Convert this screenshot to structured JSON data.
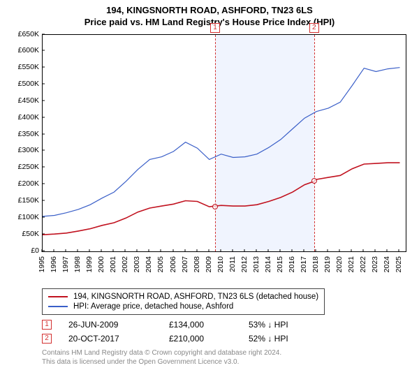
{
  "title": "194, KINGSNORTH ROAD, ASHFORD, TN23 6LS",
  "subtitle": "Price paid vs. HM Land Registry's House Price Index (HPI)",
  "chart": {
    "type": "line",
    "ylim": [
      0,
      650000
    ],
    "ytick_step": 50000,
    "ytick_labels": [
      "£0",
      "£50K",
      "£100K",
      "£150K",
      "£200K",
      "£250K",
      "£300K",
      "£350K",
      "£400K",
      "£450K",
      "£500K",
      "£550K",
      "£600K",
      "£650K"
    ],
    "xlim": [
      1995,
      2025.5
    ],
    "xticks": [
      1995,
      1996,
      1997,
      1998,
      1999,
      2000,
      2001,
      2002,
      2003,
      2004,
      2005,
      2006,
      2007,
      2008,
      2009,
      2010,
      2011,
      2012,
      2013,
      2014,
      2015,
      2016,
      2017,
      2018,
      2019,
      2020,
      2021,
      2022,
      2023,
      2024,
      2025
    ],
    "background_color": "#ffffff",
    "shade_color": "#f0f4fe",
    "shade_range": [
      2009.49,
      2017.8
    ],
    "series": [
      {
        "id": "property",
        "label": "194, KINGSNORTH ROAD, ASHFORD, TN23 6LS (detached house)",
        "color": "#c1121f",
        "width": 1.6,
        "data": [
          [
            1995,
            50000
          ],
          [
            1996,
            52000
          ],
          [
            1997,
            55000
          ],
          [
            1998,
            61000
          ],
          [
            1999,
            68000
          ],
          [
            2000,
            78000
          ],
          [
            2001,
            86000
          ],
          [
            2002,
            100000
          ],
          [
            2003,
            118000
          ],
          [
            2004,
            130000
          ],
          [
            2005,
            136000
          ],
          [
            2006,
            142000
          ],
          [
            2007,
            152000
          ],
          [
            2008,
            150000
          ],
          [
            2009,
            134000
          ],
          [
            2010,
            138000
          ],
          [
            2011,
            136000
          ],
          [
            2012,
            136000
          ],
          [
            2013,
            140000
          ],
          [
            2014,
            150000
          ],
          [
            2015,
            162000
          ],
          [
            2016,
            178000
          ],
          [
            2017,
            200000
          ],
          [
            2017.8,
            210000
          ],
          [
            2018,
            216000
          ],
          [
            2019,
            222000
          ],
          [
            2020,
            228000
          ],
          [
            2021,
            248000
          ],
          [
            2022,
            262000
          ],
          [
            2023,
            264000
          ],
          [
            2024,
            266000
          ],
          [
            2025,
            266000
          ]
        ]
      },
      {
        "id": "hpi",
        "label": "HPI: Average price, detached house, Ashford",
        "color": "#3a5fc8",
        "width": 1.2,
        "data": [
          [
            1995,
            105000
          ],
          [
            1996,
            108000
          ],
          [
            1997,
            116000
          ],
          [
            1998,
            126000
          ],
          [
            1999,
            140000
          ],
          [
            2000,
            160000
          ],
          [
            2001,
            178000
          ],
          [
            2002,
            210000
          ],
          [
            2003,
            246000
          ],
          [
            2004,
            276000
          ],
          [
            2005,
            284000
          ],
          [
            2006,
            300000
          ],
          [
            2007,
            328000
          ],
          [
            2008,
            310000
          ],
          [
            2009,
            276000
          ],
          [
            2010,
            292000
          ],
          [
            2011,
            282000
          ],
          [
            2012,
            284000
          ],
          [
            2013,
            292000
          ],
          [
            2014,
            312000
          ],
          [
            2015,
            336000
          ],
          [
            2016,
            368000
          ],
          [
            2017,
            400000
          ],
          [
            2018,
            420000
          ],
          [
            2019,
            430000
          ],
          [
            2020,
            448000
          ],
          [
            2021,
            498000
          ],
          [
            2022,
            550000
          ],
          [
            2023,
            540000
          ],
          [
            2024,
            548000
          ],
          [
            2025,
            552000
          ]
        ]
      }
    ],
    "sale_markers": [
      {
        "idx": "1",
        "x": 2009.49,
        "y": 134000,
        "vline_color": "#d32f2f"
      },
      {
        "idx": "2",
        "x": 2017.8,
        "y": 210000,
        "vline_color": "#d32f2f"
      }
    ]
  },
  "legend": {
    "items": [
      {
        "label": "194, KINGSNORTH ROAD, ASHFORD, TN23 6LS (detached house)",
        "color": "#c1121f"
      },
      {
        "label": "HPI: Average price, detached house, Ashford",
        "color": "#3a5fc8"
      }
    ]
  },
  "sales": [
    {
      "idx": "1",
      "date": "26-JUN-2009",
      "price": "£134,000",
      "pct": "53%  ↓ HPI"
    },
    {
      "idx": "2",
      "date": "20-OCT-2017",
      "price": "£210,000",
      "pct": "52%  ↓ HPI"
    }
  ],
  "footer_line1": "Contains HM Land Registry data © Crown copyright and database right 2024.",
  "footer_line2": "This data is licensed under the Open Government Licence v3.0."
}
